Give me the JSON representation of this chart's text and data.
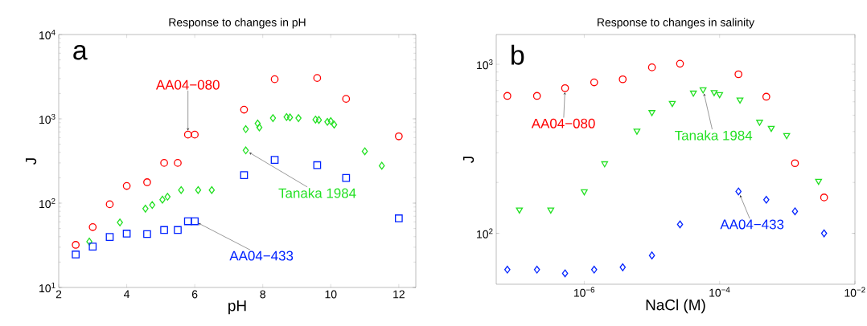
{
  "chart_data": [
    {
      "type": "scatter",
      "title": "Response to changes in pH",
      "xlabel": "pH",
      "ylabel": "J",
      "log": "y",
      "xlim": [
        2,
        12.5
      ],
      "xticks": [
        2,
        4,
        6,
        8,
        10,
        12
      ],
      "ylim": [
        10,
        10000
      ],
      "yticks": [
        {
          "value": 10,
          "label": "10$^{1}$"
        },
        {
          "value": 100,
          "label": "10$^{2}$"
        },
        {
          "value": 1000,
          "label": "10$^{3}$"
        },
        {
          "value": 10000,
          "label": "10$^{4}$"
        }
      ],
      "series": [
        {
          "color": "#ff0000",
          "marker": "circle",
          "x": [
            2.5,
            3.0,
            3.5,
            4.0,
            4.6,
            5.1,
            5.5,
            5.8,
            6.0,
            7.45,
            8.35,
            9.6,
            10.45,
            12.0
          ],
          "values": [
            32,
            52,
            97,
            160,
            177,
            300,
            300,
            650,
            650,
            1285,
            2950,
            3050,
            1725,
            620
          ]
        },
        {
          "color": "#22e022",
          "marker": "diamond",
          "x": [
            2.9,
            3.8,
            4.55,
            4.75,
            5.05,
            5.2,
            5.6,
            6.1,
            6.5,
            7.5,
            7.5,
            7.85,
            7.9,
            8.3,
            8.7,
            8.8,
            9.05,
            9.55,
            9.65,
            9.9,
            10.0,
            10.1,
            11.0,
            11.5
          ],
          "values": [
            35,
            59,
            86,
            95,
            110,
            119,
            143,
            143,
            143,
            755,
            422,
            880,
            790,
            1020,
            1050,
            1040,
            1020,
            980,
            970,
            920,
            940,
            853,
            412,
            278
          ]
        },
        {
          "color": "#0022ff",
          "marker": "square",
          "x": [
            2.5,
            3.0,
            3.5,
            4.0,
            4.6,
            5.1,
            5.5,
            5.8,
            6.0,
            7.45,
            8.35,
            9.6,
            10.45,
            12.0
          ],
          "values": [
            24.6,
            30.5,
            39.7,
            43.5,
            43,
            48,
            48,
            61,
            61,
            215,
            326,
            282,
            199,
            66
          ]
        }
      ],
      "annotations": [
        "a",
        {
          "text": "AA04−080",
          "x": 5.8,
          "y": 650
        },
        {
          "text": "Tanaka 1984",
          "x": 7.5,
          "y": 422
        },
        {
          "text": "AA04−433",
          "x": 6.0,
          "y": 61
        }
      ]
    },
    {
      "type": "scatter",
      "title": "Response to changes in salinity",
      "xlabel": "NaCl (M)",
      "ylabel": "J",
      "log": "xy",
      "xlim": [
        5e-08,
        0.01
      ],
      "xticks": [
        {
          "value": 1e-06,
          "label": "10$^{−6}$"
        },
        {
          "value": 0.0001,
          "label": "10$^{−4}$"
        },
        {
          "value": 0.01,
          "label": "10$^{−2}$"
        }
      ],
      "ylim": [
        50,
        1500
      ],
      "yticks": [
        {
          "value": 100,
          "label": "10$^{2}$"
        },
        {
          "value": 1000,
          "label": "10$^{3}$"
        }
      ],
      "series": [
        {
          "color": "#ff0000",
          "marker": "circle",
          "x": [
            7.3e-08,
            2e-07,
            5.2e-07,
            1.4e-06,
            3.7e-06,
            1e-05,
            2.6e-05,
            0.00019,
            0.00049,
            0.0013,
            0.0035
          ],
          "values": [
            650,
            650,
            723,
            782,
            815,
            959,
            1008,
            873,
            643,
            260,
            163
          ]
        },
        {
          "color": "#22e022",
          "marker": "triangle",
          "x": [
            1.1e-07,
            3.2e-07,
            1e-06,
            2e-06,
            6e-06,
            1e-05,
            2e-05,
            4.1e-05,
            5.7e-05,
            8.3e-05,
            0.0001,
            0.0002,
            0.00039,
            0.00058,
            0.00098,
            0.0029
          ],
          "values": [
            138,
            138,
            177,
            259,
            404,
            520,
            589,
            678,
            709,
            683,
            665,
            617,
            456,
            420,
            380,
            204
          ]
        },
        {
          "color": "#0022ff",
          "marker": "diamond",
          "x": [
            7.3e-08,
            2e-07,
            5.2e-07,
            1.4e-06,
            3.7e-06,
            1e-05,
            2.6e-05,
            0.00019,
            0.00049,
            0.0013,
            0.0035
          ],
          "values": [
            61,
            61,
            58,
            61,
            63,
            74,
            113,
            177,
            158,
            135,
            100
          ]
        }
      ],
      "annotations": [
        "b",
        {
          "text": "AA04−080",
          "x": 5.2e-07,
          "y": 723
        },
        {
          "text": "Tanaka 1984",
          "x": 5.7e-05,
          "y": 709
        },
        {
          "text": "AA04−433",
          "x": 0.00019,
          "y": 177
        }
      ]
    }
  ]
}
